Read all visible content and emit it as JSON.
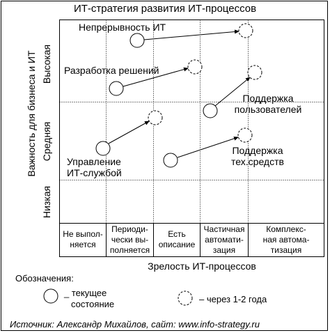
{
  "title": "ИТ-стратегия развития ИТ-процессов",
  "y_axis": {
    "label": "Важность для бизнеса и ИТ",
    "levels": [
      "Высокая",
      "Средняя",
      "Низкая"
    ]
  },
  "x_axis": {
    "label": "Зрелость ИТ-процессов",
    "levels": [
      [
        "Не выпол-",
        "няется"
      ],
      [
        "Периоди-",
        "чески вы-",
        "полняется"
      ],
      [
        "Есть",
        "описание"
      ],
      [
        "Частичная",
        "автомати-",
        "зация"
      ],
      [
        "Комплекс-",
        "ная автома-",
        "тизация"
      ]
    ]
  },
  "processes": {
    "continuity": [
      "Непрерывность ИТ"
    ],
    "solutions": [
      "Разработка решений"
    ],
    "user_support": [
      "Поддержка",
      "пользователей"
    ],
    "service_mgmt": [
      "Управление",
      "ИТ-службой"
    ],
    "tech_support": [
      "Поддержка",
      "тех.средств"
    ]
  },
  "legend": {
    "heading": "Обозначения:",
    "current": [
      "_ текущее",
      "состояние"
    ],
    "future": "– через 1-2 года"
  },
  "source": "Источник: Александр Михайлов, сайт: www.info-strategy.ru"
}
